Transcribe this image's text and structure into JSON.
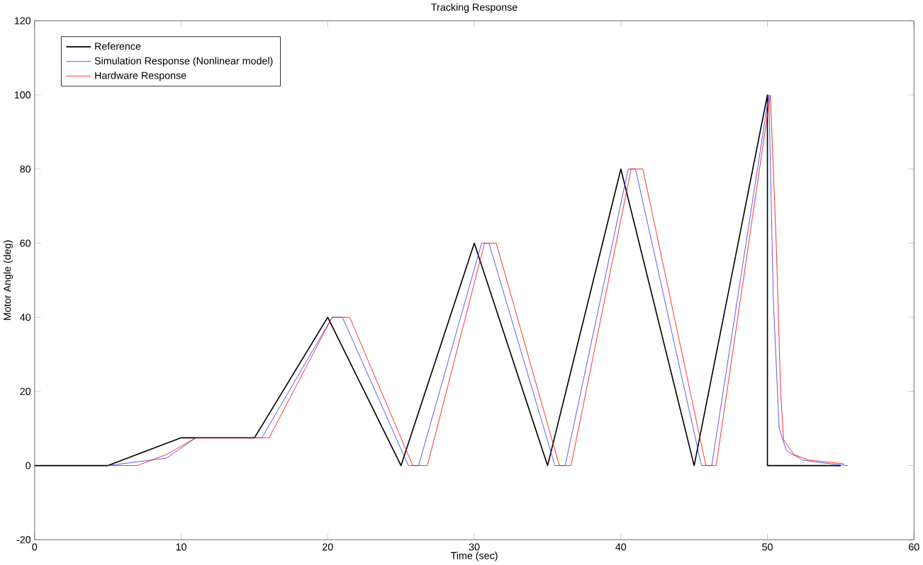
{
  "chart_data": {
    "type": "line",
    "title": "Tracking Response",
    "xlabel": "Time (sec)",
    "ylabel": "Motor Angle (deg)",
    "xlim": [
      0,
      60
    ],
    "ylim": [
      -20,
      120
    ],
    "xticks": [
      0,
      10,
      20,
      30,
      40,
      50,
      60
    ],
    "yticks": [
      -20,
      0,
      20,
      40,
      60,
      80,
      100,
      120
    ],
    "grid": false,
    "legend": "top left",
    "series": [
      {
        "name": "Reference",
        "color": "#000000",
        "x": [
          0,
          5,
          10,
          15,
          20,
          25,
          30,
          35,
          40,
          45,
          50,
          50,
          55
        ],
        "values": [
          0,
          0,
          7.5,
          7.5,
          40,
          0,
          60,
          0,
          80,
          0,
          100,
          0,
          0
        ]
      },
      {
        "name": "Simulation Response (Nonlinear model)",
        "color": "#3333ff",
        "x": [
          5,
          7,
          9,
          11,
          15.5,
          20.3,
          21,
          25.5,
          26.2,
          30.5,
          31,
          35.5,
          36.2,
          40.5,
          41,
          45.5,
          46.2,
          50.1,
          50.4,
          50.8,
          51.3,
          52.4,
          53.6,
          55.5
        ],
        "values": [
          0,
          1,
          2,
          7.5,
          7.5,
          40,
          40,
          0,
          0,
          60,
          60,
          0,
          0,
          80,
          80,
          0,
          0,
          100,
          45,
          10,
          4,
          1.5,
          0.8,
          0
        ]
      },
      {
        "name": "Hardware Response",
        "color": "#ff0000",
        "x": [
          5,
          7,
          9,
          11,
          16,
          20.3,
          21.5,
          25.8,
          26.8,
          30.7,
          31.5,
          35.8,
          36.6,
          40.7,
          41.5,
          45.8,
          46.5,
          50.2,
          50.6,
          50.9,
          51.1,
          51.8,
          52.8,
          55.2
        ],
        "values": [
          0,
          0,
          3,
          7.5,
          7.5,
          40,
          40,
          0,
          0,
          60,
          60,
          0,
          0,
          80,
          80,
          0,
          0,
          100,
          60,
          20,
          7,
          3,
          1.5,
          0.5
        ]
      }
    ]
  }
}
